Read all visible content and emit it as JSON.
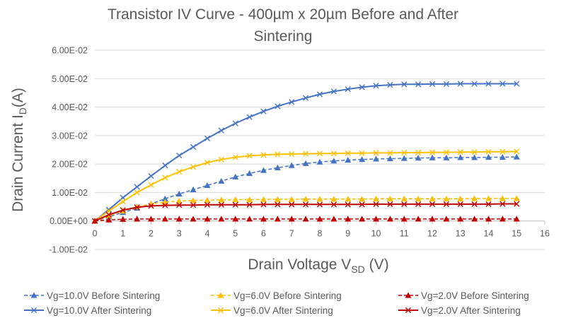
{
  "chart_data": {
    "type": "line",
    "title": "Transistor IV Curve - 400µm x 20µm Before and After Sintering",
    "title_lines": [
      "Transistor IV Curve - 400µm x 20µm Before and After",
      "Sintering"
    ],
    "xlabel": "Drain Voltage V_SD (V)",
    "xlabel_main": "Drain Voltage V",
    "xlabel_sub": "SD",
    "xlabel_tail": " (V)",
    "ylabel": "Drain Current I_D(A)",
    "ylabel_main": "Drain Current I",
    "ylabel_sub": "D",
    "ylabel_tail": "(A)",
    "xlim": [
      0,
      16
    ],
    "ylim": [
      -0.01,
      0.06
    ],
    "x_ticks": [
      "0",
      "1",
      "2",
      "3",
      "4",
      "5",
      "6",
      "7",
      "8",
      "9",
      "10",
      "11",
      "12",
      "13",
      "14",
      "15",
      "16"
    ],
    "y_ticks": [
      "6.00E-02",
      "5.00E-02",
      "4.00E-02",
      "3.00E-02",
      "2.00E-02",
      "1.00E-02",
      "0.00E+00",
      "-1.00E-02"
    ],
    "y_tick_values": [
      0.06,
      0.05,
      0.04,
      0.03,
      0.02,
      0.01,
      0,
      -0.01
    ],
    "grid": "horizontal",
    "legend_position": "bottom",
    "x": [
      0,
      0.5,
      1,
      1.5,
      2,
      2.5,
      3,
      3.5,
      4,
      4.5,
      5,
      5.5,
      6,
      6.5,
      7,
      7.5,
      8,
      8.5,
      9,
      9.5,
      10,
      10.5,
      11,
      11.5,
      12,
      12.5,
      13,
      13.5,
      14,
      14.5,
      15
    ],
    "series": [
      {
        "name": "Vg=10.0V Before Sintering",
        "color": "#4472C4",
        "marker": "triangle",
        "dashed": true,
        "values": [
          0,
          0.0015,
          0.003,
          0.0045,
          0.006,
          0.0078,
          0.0095,
          0.011,
          0.0125,
          0.014,
          0.0155,
          0.0167,
          0.0178,
          0.0187,
          0.0195,
          0.0202,
          0.0207,
          0.0211,
          0.0214,
          0.0216,
          0.0218,
          0.0219,
          0.022,
          0.0221,
          0.0222,
          0.0222,
          0.0223,
          0.0223,
          0.0224,
          0.0224,
          0.0225
        ]
      },
      {
        "name": "Vg=6.0V Before Sintering",
        "color": "#FFC000",
        "marker": "triangle",
        "dashed": true,
        "values": [
          0,
          0.0018,
          0.0035,
          0.005,
          0.006,
          0.0066,
          0.007,
          0.0072,
          0.0073,
          0.0074,
          0.0075,
          0.0075,
          0.0076,
          0.0076,
          0.0076,
          0.0077,
          0.0077,
          0.0077,
          0.0077,
          0.0077,
          0.0078,
          0.0078,
          0.0078,
          0.0078,
          0.0078,
          0.0078,
          0.0078,
          0.0079,
          0.0079,
          0.0079,
          0.0079
        ]
      },
      {
        "name": "Vg=2.0V Before Sintering",
        "color": "#C00000",
        "marker": "triangle",
        "dashed": true,
        "values": [
          0,
          0.0004,
          0.0006,
          0.0007,
          0.0007,
          0.0007,
          0.0007,
          0.0007,
          0.0007,
          0.0007,
          0.0007,
          0.0007,
          0.0007,
          0.0007,
          0.0007,
          0.0007,
          0.0007,
          0.0007,
          0.0007,
          0.0007,
          0.0007,
          0.0007,
          0.0007,
          0.0007,
          0.0007,
          0.0007,
          0.0007,
          0.0007,
          0.0007,
          0.0007,
          0.0007
        ]
      },
      {
        "name": "Vg=10.0V After Sintering",
        "color": "#4472C4",
        "marker": "x",
        "dashed": false,
        "values": [
          0,
          0.004,
          0.0082,
          0.012,
          0.0158,
          0.0195,
          0.023,
          0.026,
          0.029,
          0.0318,
          0.0343,
          0.0365,
          0.0385,
          0.0403,
          0.0418,
          0.0432,
          0.0445,
          0.0455,
          0.0463,
          0.047,
          0.0475,
          0.0478,
          0.048,
          0.048,
          0.0481,
          0.0481,
          0.0482,
          0.0482,
          0.0482,
          0.0482,
          0.0482
        ]
      },
      {
        "name": "Vg=6.0V After Sintering",
        "color": "#FFC000",
        "marker": "x",
        "dashed": false,
        "values": [
          0,
          0.0035,
          0.0068,
          0.01,
          0.0127,
          0.0152,
          0.0173,
          0.019,
          0.0205,
          0.0216,
          0.0224,
          0.0229,
          0.0232,
          0.0234,
          0.0235,
          0.0236,
          0.0237,
          0.0237,
          0.0238,
          0.0238,
          0.0239,
          0.0239,
          0.024,
          0.024,
          0.0241,
          0.0241,
          0.0242,
          0.0242,
          0.0243,
          0.0243,
          0.0244
        ]
      },
      {
        "name": "Vg=2.0V After Sintering",
        "color": "#C00000",
        "marker": "x",
        "dashed": false,
        "values": [
          0,
          0.0022,
          0.0038,
          0.0048,
          0.0053,
          0.0055,
          0.0056,
          0.0056,
          0.0057,
          0.0057,
          0.0057,
          0.0057,
          0.0058,
          0.0058,
          0.0058,
          0.0058,
          0.0058,
          0.0058,
          0.0058,
          0.0058,
          0.0059,
          0.0059,
          0.0059,
          0.0059,
          0.0059,
          0.0059,
          0.0059,
          0.0059,
          0.0059,
          0.006,
          0.006
        ]
      }
    ]
  }
}
